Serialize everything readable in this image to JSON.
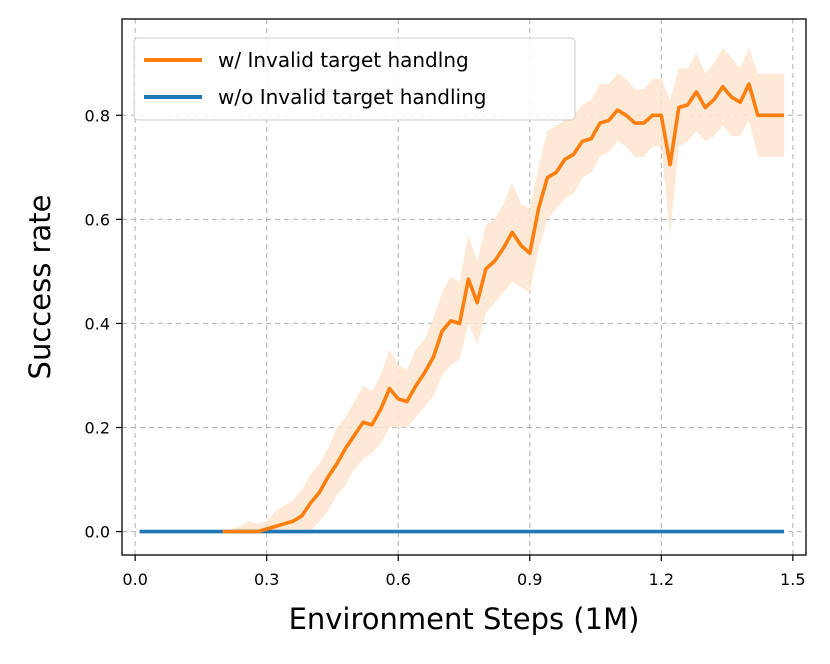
{
  "chart_data": {
    "type": "line",
    "xlabel": "Environment Steps (1M)",
    "ylabel": "Success rate",
    "xlim": [
      -0.03,
      1.53
    ],
    "ylim": [
      -0.045,
      0.985
    ],
    "xticks": [
      0.0,
      0.3,
      0.6,
      0.9,
      1.2,
      1.5
    ],
    "xtick_labels": [
      "0.0",
      "0.3",
      "0.6",
      "0.9",
      "1.2",
      "1.5"
    ],
    "yticks": [
      0.0,
      0.2,
      0.4,
      0.6,
      0.8
    ],
    "ytick_labels": [
      "0.0",
      "0.2",
      "0.4",
      "0.6",
      "0.8"
    ],
    "grid": true,
    "legend_position": "upper-left",
    "series": [
      {
        "name": "w/ Invalid target handlng",
        "color": "#ff7f0e",
        "band_color": "#fde5cf",
        "x": [
          0.2,
          0.22,
          0.24,
          0.26,
          0.28,
          0.3,
          0.32,
          0.34,
          0.36,
          0.38,
          0.4,
          0.42,
          0.44,
          0.46,
          0.48,
          0.5,
          0.52,
          0.54,
          0.56,
          0.58,
          0.6,
          0.62,
          0.64,
          0.66,
          0.68,
          0.7,
          0.72,
          0.74,
          0.76,
          0.78,
          0.8,
          0.82,
          0.84,
          0.86,
          0.88,
          0.9,
          0.92,
          0.94,
          0.96,
          0.98,
          1.0,
          1.02,
          1.04,
          1.06,
          1.08,
          1.1,
          1.12,
          1.14,
          1.16,
          1.18,
          1.2,
          1.22,
          1.24,
          1.26,
          1.28,
          1.3,
          1.32,
          1.34,
          1.36,
          1.38,
          1.4,
          1.42,
          1.44,
          1.46,
          1.48
        ],
        "y": [
          0.0,
          0.0,
          0.0,
          0.0,
          0.0,
          0.005,
          0.01,
          0.015,
          0.02,
          0.03,
          0.055,
          0.075,
          0.105,
          0.13,
          0.16,
          0.185,
          0.21,
          0.205,
          0.235,
          0.275,
          0.255,
          0.25,
          0.28,
          0.305,
          0.335,
          0.385,
          0.405,
          0.4,
          0.485,
          0.44,
          0.505,
          0.52,
          0.545,
          0.575,
          0.55,
          0.535,
          0.62,
          0.68,
          0.69,
          0.715,
          0.725,
          0.75,
          0.755,
          0.785,
          0.79,
          0.81,
          0.8,
          0.785,
          0.785,
          0.8,
          0.8,
          0.705,
          0.815,
          0.82,
          0.845,
          0.815,
          0.83,
          0.855,
          0.835,
          0.825,
          0.86,
          0.8,
          0.8,
          0.8,
          0.8
        ],
        "lower": [
          0.0,
          0.0,
          0.0,
          0.0,
          0.0,
          0.0,
          0.0,
          0.0,
          0.0,
          0.0,
          0.0,
          0.02,
          0.04,
          0.07,
          0.09,
          0.12,
          0.14,
          0.15,
          0.17,
          0.2,
          0.2,
          0.2,
          0.22,
          0.24,
          0.26,
          0.3,
          0.32,
          0.33,
          0.4,
          0.36,
          0.42,
          0.44,
          0.46,
          0.48,
          0.47,
          0.46,
          0.54,
          0.6,
          0.62,
          0.64,
          0.65,
          0.68,
          0.69,
          0.72,
          0.73,
          0.75,
          0.74,
          0.72,
          0.72,
          0.74,
          0.74,
          0.57,
          0.74,
          0.75,
          0.77,
          0.75,
          0.76,
          0.78,
          0.76,
          0.76,
          0.79,
          0.72,
          0.72,
          0.72,
          0.72
        ],
        "upper": [
          0.0,
          0.005,
          0.01,
          0.02,
          0.015,
          0.02,
          0.04,
          0.05,
          0.06,
          0.08,
          0.11,
          0.13,
          0.16,
          0.2,
          0.22,
          0.25,
          0.28,
          0.27,
          0.3,
          0.35,
          0.32,
          0.31,
          0.35,
          0.37,
          0.41,
          0.46,
          0.49,
          0.48,
          0.57,
          0.52,
          0.59,
          0.6,
          0.63,
          0.67,
          0.63,
          0.62,
          0.7,
          0.77,
          0.78,
          0.79,
          0.8,
          0.82,
          0.83,
          0.86,
          0.86,
          0.88,
          0.87,
          0.85,
          0.85,
          0.87,
          0.87,
          0.83,
          0.89,
          0.89,
          0.92,
          0.88,
          0.9,
          0.93,
          0.91,
          0.89,
          0.93,
          0.88,
          0.88,
          0.88,
          0.88
        ]
      },
      {
        "name": "w/o Invalid target handling",
        "color": "#1f77b4",
        "x": [
          0.01,
          1.48
        ],
        "y": [
          0.0,
          0.0
        ]
      }
    ]
  }
}
